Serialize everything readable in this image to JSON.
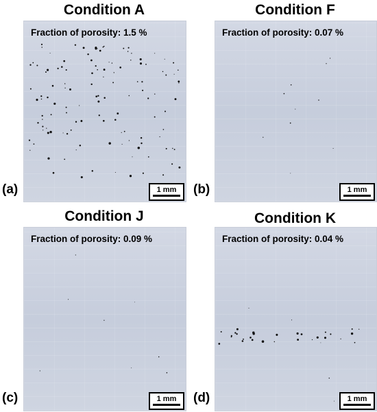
{
  "panels": [
    {
      "label": "(a)",
      "title": "Condition A",
      "fraction": "Fraction of porosity: 1.5 %",
      "scale": "1 mm"
    },
    {
      "label": "(b)",
      "title": "Condition F",
      "fraction": "Fraction of porosity: 0.07 %",
      "scale": "1 mm"
    },
    {
      "label": "(c)",
      "title": "Condition J",
      "fraction": "Fraction of porosity: 0.09 %",
      "scale": "1 mm"
    },
    {
      "label": "(d)",
      "title": "Condition K",
      "fraction": "Fraction of porosity: 0.04 %",
      "scale": "1 mm"
    }
  ]
}
